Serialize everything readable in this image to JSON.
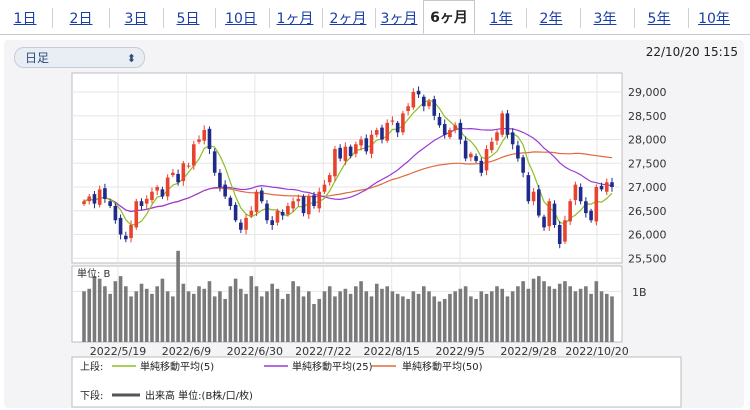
{
  "tabs": [
    {
      "label": "1日"
    },
    {
      "label": "2日"
    },
    {
      "label": "3日"
    },
    {
      "label": "5日"
    },
    {
      "label": "10日"
    },
    {
      "label": "1ヶ月"
    },
    {
      "label": "2ヶ月"
    },
    {
      "label": "3ヶ月"
    },
    {
      "label": "6ヶ月"
    },
    {
      "label": "1年"
    },
    {
      "label": "2年"
    },
    {
      "label": "3年"
    },
    {
      "label": "5年"
    },
    {
      "label": "10年"
    }
  ],
  "active_tab": "6ヶ月",
  "toolbar": {
    "period_select": "日足",
    "datetime": "22/10/20 15:15"
  },
  "legend": {
    "upper_label": "上段:",
    "lower_label": "下段:",
    "volume_label": "出来高 単位:(B株/口/枚)"
  },
  "colors": {
    "up": "#e8432e",
    "down": "#1f2b8a",
    "ma5": "#8cbf26",
    "ma25": "#9a3ad8",
    "ma50": "#e06a3c",
    "volume": "#7a7a7a"
  },
  "chart_data": {
    "type": "candlestick",
    "y_ticks": [
      "29,000",
      "28,500",
      "28,000",
      "27,500",
      "27,000",
      "26,500",
      "26,000",
      "25,500"
    ],
    "ylim": [
      25400,
      29400
    ],
    "x_ticks": [
      "2022/5/19",
      "2022/6/9",
      "2022/6/30",
      "2022/7/22",
      "2022/8/15",
      "2022/9/5",
      "2022/9/28",
      "2022/10/20"
    ],
    "volume_unit": "単位: B",
    "volume_tick": "1B",
    "volume_ylim": [
      0,
      1.5
    ],
    "series": [
      {
        "name": "単純移動平均(5)"
      },
      {
        "name": "単純移動平均(25)"
      },
      {
        "name": "単純移動平均(50)"
      }
    ],
    "closes": [
      26700,
      26800,
      26650,
      26950,
      26750,
      26600,
      26300,
      26000,
      25900,
      26200,
      26700,
      26600,
      26750,
      26900,
      27000,
      26800,
      27200,
      27300,
      27100,
      27500,
      27450,
      27900,
      28000,
      28200,
      27800,
      27300,
      27000,
      26800,
      26600,
      26300,
      26100,
      26350,
      26500,
      26900,
      26700,
      26300,
      26200,
      26500,
      26400,
      26600,
      26700,
      26750,
      26450,
      26800,
      26600,
      26900,
      27050,
      27250,
      27800,
      27600,
      27850,
      27650,
      27900,
      28000,
      27750,
      28100,
      28200,
      28000,
      28350,
      28400,
      28150,
      28550,
      28700,
      29000,
      28950,
      28700,
      28800,
      28500,
      28300,
      28100,
      28200,
      28300,
      28000,
      27600,
      27700,
      27550,
      27300,
      27800,
      27950,
      28150,
      28550,
      28100,
      27900,
      27600,
      27300,
      26700,
      26900,
      26400,
      26150,
      26700,
      26200,
      25800,
      26300,
      26700,
      27050,
      26700,
      26450,
      26300,
      27000,
      26950,
      27100,
      27000
    ],
    "volume": [
      1.0,
      1.05,
      1.3,
      1.25,
      1.1,
      0.95,
      1.2,
      1.3,
      1.1,
      0.9,
      1.0,
      1.15,
      1.05,
      0.95,
      1.1,
      1.25,
      1.0,
      0.9,
      1.8,
      1.15,
      1.0,
      0.95,
      1.1,
      1.05,
      1.2,
      0.9,
      1.0,
      0.85,
      1.1,
      1.25,
      1.05,
      0.95,
      1.3,
      1.1,
      0.9,
      1.0,
      1.15,
      1.05,
      0.85,
      0.95,
      1.2,
      1.1,
      0.9,
      1.0,
      0.75,
      0.85,
      1.0,
      1.1,
      0.9,
      1.0,
      1.05,
      0.95,
      1.1,
      1.2,
      1.0,
      0.9,
      1.15,
      1.05,
      1.1,
      1.0,
      0.95,
      0.9,
      0.85,
      1.0,
      0.95,
      1.1,
      1.0,
      0.9,
      0.8,
      0.85,
      0.95,
      1.0,
      1.05,
      1.1,
      0.9,
      0.85,
      1.0,
      0.95,
      1.0,
      1.1,
      1.05,
      0.9,
      1.0,
      1.1,
      1.2,
      1.05,
      1.25,
      1.3,
      1.2,
      1.1,
      1.05,
      1.15,
      1.2,
      1.1,
      1.0,
      1.05,
      1.1,
      0.95,
      1.2,
      1.0,
      0.95,
      0.9
    ]
  }
}
